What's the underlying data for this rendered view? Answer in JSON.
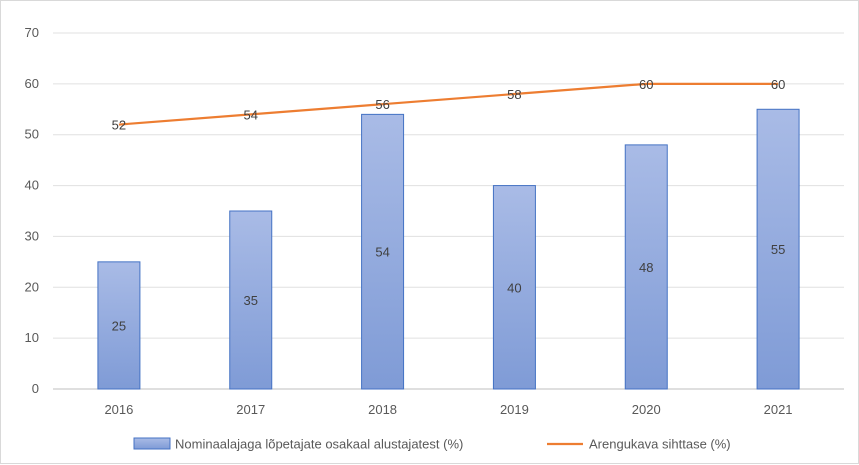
{
  "chart_data": {
    "type": "bar",
    "categories": [
      "2016",
      "2017",
      "2018",
      "2019",
      "2020",
      "2021"
    ],
    "series": [
      {
        "name": "Nominaalajaga lõpetajate osakaal alustajatest (%)",
        "type": "bar",
        "values": [
          25,
          35,
          54,
          40,
          48,
          55
        ],
        "color": "#8faadc",
        "border_color": "#4472c4"
      },
      {
        "name": "Arengukava sihttase (%)",
        "type": "line",
        "values": [
          52,
          54,
          56,
          58,
          60,
          60
        ],
        "color": "#ed7d31"
      }
    ],
    "title": "",
    "xlabel": "",
    "ylabel": "",
    "ylim": [
      0,
      70
    ],
    "yticks": [
      0,
      10,
      20,
      30,
      40,
      50,
      60,
      70
    ],
    "grid": true,
    "legend_position": "bottom"
  }
}
